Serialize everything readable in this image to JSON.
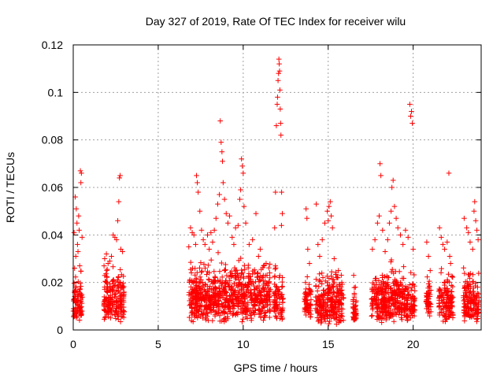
{
  "chart_data": {
    "type": "scatter",
    "title": "Day 327 of 2019, Rate Of TEC Index for receiver wilu",
    "xlabel": "GPS time / hours",
    "ylabel": "ROTI / TECUs",
    "xlim": [
      0,
      24
    ],
    "ylim": [
      0,
      0.12
    ],
    "xticks": [
      0,
      5,
      10,
      15,
      20,
      25
    ],
    "xtick_labels": [
      "0",
      "5",
      "10",
      "15",
      "20"
    ],
    "yticks": [
      0,
      0.02,
      0.04,
      0.06,
      0.08,
      0.1,
      0.12
    ],
    "ytick_labels": [
      "0",
      "0.02",
      "0.04",
      "0.06",
      "0.08",
      "0.1",
      "0.12"
    ],
    "grid": true,
    "marker": "plus",
    "color": "#ff0000",
    "series": [
      {
        "name": "ROTI",
        "points": [
          {
            "x": 0.05,
            "y": 0.041
          },
          {
            "x": 0.12,
            "y": 0.056
          },
          {
            "x": 0.18,
            "y": 0.051
          },
          {
            "x": 0.22,
            "y": 0.045
          },
          {
            "x": 0.25,
            "y": 0.036
          },
          {
            "x": 0.28,
            "y": 0.033
          },
          {
            "x": 0.32,
            "y": 0.048
          },
          {
            "x": 0.35,
            "y": 0.042
          },
          {
            "x": 0.42,
            "y": 0.067
          },
          {
            "x": 0.45,
            "y": 0.062
          },
          {
            "x": 0.48,
            "y": 0.066
          },
          {
            "x": 0.52,
            "y": 0.039
          },
          {
            "x": 0.38,
            "y": 0.027
          },
          {
            "x": 0.15,
            "y": 0.031
          },
          {
            "x": 0.08,
            "y": 0.026
          },
          {
            "x": 1.85,
            "y": 0.03
          },
          {
            "x": 1.95,
            "y": 0.032
          },
          {
            "x": 2.05,
            "y": 0.028
          },
          {
            "x": 2.25,
            "y": 0.031
          },
          {
            "x": 2.35,
            "y": 0.04
          },
          {
            "x": 2.45,
            "y": 0.039
          },
          {
            "x": 2.55,
            "y": 0.038
          },
          {
            "x": 2.62,
            "y": 0.046
          },
          {
            "x": 2.68,
            "y": 0.054
          },
          {
            "x": 2.72,
            "y": 0.064
          },
          {
            "x": 2.76,
            "y": 0.065
          },
          {
            "x": 2.8,
            "y": 0.034
          },
          {
            "x": 2.9,
            "y": 0.033
          },
          {
            "x": 2.15,
            "y": 0.029
          },
          {
            "x": 6.8,
            "y": 0.035
          },
          {
            "x": 6.9,
            "y": 0.043
          },
          {
            "x": 7.0,
            "y": 0.041
          },
          {
            "x": 7.1,
            "y": 0.04
          },
          {
            "x": 7.2,
            "y": 0.036
          },
          {
            "x": 7.25,
            "y": 0.065
          },
          {
            "x": 7.3,
            "y": 0.062
          },
          {
            "x": 7.35,
            "y": 0.058
          },
          {
            "x": 7.45,
            "y": 0.05
          },
          {
            "x": 7.55,
            "y": 0.042
          },
          {
            "x": 7.65,
            "y": 0.038
          },
          {
            "x": 7.75,
            "y": 0.036
          },
          {
            "x": 7.9,
            "y": 0.04
          },
          {
            "x": 8.0,
            "y": 0.034
          },
          {
            "x": 8.1,
            "y": 0.041
          },
          {
            "x": 8.2,
            "y": 0.037
          },
          {
            "x": 8.3,
            "y": 0.042
          },
          {
            "x": 8.4,
            "y": 0.047
          },
          {
            "x": 8.5,
            "y": 0.053
          },
          {
            "x": 8.6,
            "y": 0.057
          },
          {
            "x": 8.65,
            "y": 0.088
          },
          {
            "x": 8.7,
            "y": 0.079
          },
          {
            "x": 8.75,
            "y": 0.075
          },
          {
            "x": 8.78,
            "y": 0.071
          },
          {
            "x": 8.82,
            "y": 0.062
          },
          {
            "x": 8.9,
            "y": 0.055
          },
          {
            "x": 9.0,
            "y": 0.049
          },
          {
            "x": 9.1,
            "y": 0.045
          },
          {
            "x": 9.2,
            "y": 0.048
          },
          {
            "x": 9.35,
            "y": 0.039
          },
          {
            "x": 9.45,
            "y": 0.036
          },
          {
            "x": 9.55,
            "y": 0.043
          },
          {
            "x": 9.7,
            "y": 0.044
          },
          {
            "x": 9.8,
            "y": 0.055
          },
          {
            "x": 9.85,
            "y": 0.059
          },
          {
            "x": 9.9,
            "y": 0.072
          },
          {
            "x": 9.95,
            "y": 0.069
          },
          {
            "x": 10.0,
            "y": 0.066
          },
          {
            "x": 10.05,
            "y": 0.052
          },
          {
            "x": 10.15,
            "y": 0.045
          },
          {
            "x": 10.35,
            "y": 0.036
          },
          {
            "x": 10.55,
            "y": 0.038
          },
          {
            "x": 10.75,
            "y": 0.049
          },
          {
            "x": 10.9,
            "y": 0.031
          },
          {
            "x": 11.0,
            "y": 0.034
          },
          {
            "x": 11.2,
            "y": 0.027
          },
          {
            "x": 11.4,
            "y": 0.023
          },
          {
            "x": 11.85,
            "y": 0.043
          },
          {
            "x": 11.9,
            "y": 0.058
          },
          {
            "x": 11.95,
            "y": 0.086
          },
          {
            "x": 12.0,
            "y": 0.095
          },
          {
            "x": 12.02,
            "y": 0.098
          },
          {
            "x": 12.05,
            "y": 0.105
          },
          {
            "x": 12.08,
            "y": 0.108
          },
          {
            "x": 12.1,
            "y": 0.114
          },
          {
            "x": 12.12,
            "y": 0.112
          },
          {
            "x": 12.14,
            "y": 0.109
          },
          {
            "x": 12.16,
            "y": 0.101
          },
          {
            "x": 12.18,
            "y": 0.093
          },
          {
            "x": 12.2,
            "y": 0.087
          },
          {
            "x": 12.22,
            "y": 0.082
          },
          {
            "x": 12.26,
            "y": 0.058
          },
          {
            "x": 12.3,
            "y": 0.049
          },
          {
            "x": 12.25,
            "y": 0.044
          },
          {
            "x": 13.7,
            "y": 0.051
          },
          {
            "x": 13.75,
            "y": 0.047
          },
          {
            "x": 13.8,
            "y": 0.034
          },
          {
            "x": 13.9,
            "y": 0.028
          },
          {
            "x": 14.3,
            "y": 0.053
          },
          {
            "x": 14.4,
            "y": 0.036
          },
          {
            "x": 14.5,
            "y": 0.031
          },
          {
            "x": 14.65,
            "y": 0.038
          },
          {
            "x": 14.8,
            "y": 0.045
          },
          {
            "x": 14.95,
            "y": 0.05
          },
          {
            "x": 15.0,
            "y": 0.046
          },
          {
            "x": 15.05,
            "y": 0.052
          },
          {
            "x": 15.12,
            "y": 0.054
          },
          {
            "x": 15.18,
            "y": 0.048
          },
          {
            "x": 15.25,
            "y": 0.043
          },
          {
            "x": 15.35,
            "y": 0.03
          },
          {
            "x": 15.6,
            "y": 0.025
          },
          {
            "x": 15.8,
            "y": 0.02
          },
          {
            "x": 16.5,
            "y": 0.023
          },
          {
            "x": 16.6,
            "y": 0.018
          },
          {
            "x": 17.6,
            "y": 0.034
          },
          {
            "x": 17.75,
            "y": 0.038
          },
          {
            "x": 17.9,
            "y": 0.045
          },
          {
            "x": 18.0,
            "y": 0.048
          },
          {
            "x": 18.05,
            "y": 0.07
          },
          {
            "x": 18.1,
            "y": 0.065
          },
          {
            "x": 18.2,
            "y": 0.042
          },
          {
            "x": 18.35,
            "y": 0.033
          },
          {
            "x": 18.5,
            "y": 0.038
          },
          {
            "x": 18.6,
            "y": 0.045
          },
          {
            "x": 18.7,
            "y": 0.05
          },
          {
            "x": 18.75,
            "y": 0.06
          },
          {
            "x": 18.82,
            "y": 0.063
          },
          {
            "x": 18.9,
            "y": 0.052
          },
          {
            "x": 19.0,
            "y": 0.047
          },
          {
            "x": 19.1,
            "y": 0.043
          },
          {
            "x": 19.25,
            "y": 0.04
          },
          {
            "x": 19.4,
            "y": 0.036
          },
          {
            "x": 19.55,
            "y": 0.042
          },
          {
            "x": 19.7,
            "y": 0.039
          },
          {
            "x": 19.8,
            "y": 0.095
          },
          {
            "x": 19.85,
            "y": 0.09
          },
          {
            "x": 19.9,
            "y": 0.092
          },
          {
            "x": 19.95,
            "y": 0.087
          },
          {
            "x": 20.0,
            "y": 0.034
          },
          {
            "x": 20.8,
            "y": 0.037
          },
          {
            "x": 20.9,
            "y": 0.031
          },
          {
            "x": 21.0,
            "y": 0.025
          },
          {
            "x": 21.55,
            "y": 0.043
          },
          {
            "x": 21.65,
            "y": 0.039
          },
          {
            "x": 21.75,
            "y": 0.036
          },
          {
            "x": 21.85,
            "y": 0.034
          },
          {
            "x": 22.0,
            "y": 0.037
          },
          {
            "x": 22.1,
            "y": 0.066
          },
          {
            "x": 22.15,
            "y": 0.031
          },
          {
            "x": 22.2,
            "y": 0.028
          },
          {
            "x": 23.0,
            "y": 0.047
          },
          {
            "x": 23.15,
            "y": 0.043
          },
          {
            "x": 23.25,
            "y": 0.041
          },
          {
            "x": 23.35,
            "y": 0.037
          },
          {
            "x": 23.5,
            "y": 0.034
          },
          {
            "x": 23.58,
            "y": 0.05
          },
          {
            "x": 23.62,
            "y": 0.054
          },
          {
            "x": 23.68,
            "y": 0.046
          },
          {
            "x": 23.75,
            "y": 0.042
          },
          {
            "x": 23.82,
            "y": 0.038
          }
        ],
        "clusters": [
          {
            "start": 0.0,
            "end": 0.55,
            "low": 0.003,
            "high": 0.03
          },
          {
            "start": 1.8,
            "end": 3.0,
            "low": 0.003,
            "high": 0.034
          },
          {
            "start": 6.8,
            "end": 11.6,
            "low": 0.003,
            "high": 0.036
          },
          {
            "start": 11.8,
            "end": 12.35,
            "low": 0.003,
            "high": 0.03
          },
          {
            "start": 13.6,
            "end": 14.0,
            "low": 0.005,
            "high": 0.026
          },
          {
            "start": 14.25,
            "end": 15.9,
            "low": 0.002,
            "high": 0.032
          },
          {
            "start": 16.45,
            "end": 16.65,
            "low": 0.003,
            "high": 0.02
          },
          {
            "start": 17.55,
            "end": 20.1,
            "low": 0.003,
            "high": 0.032
          },
          {
            "start": 20.75,
            "end": 21.05,
            "low": 0.005,
            "high": 0.028
          },
          {
            "start": 21.5,
            "end": 22.35,
            "low": 0.003,
            "high": 0.031
          },
          {
            "start": 22.95,
            "end": 23.9,
            "low": 0.003,
            "high": 0.029
          }
        ]
      }
    ]
  }
}
